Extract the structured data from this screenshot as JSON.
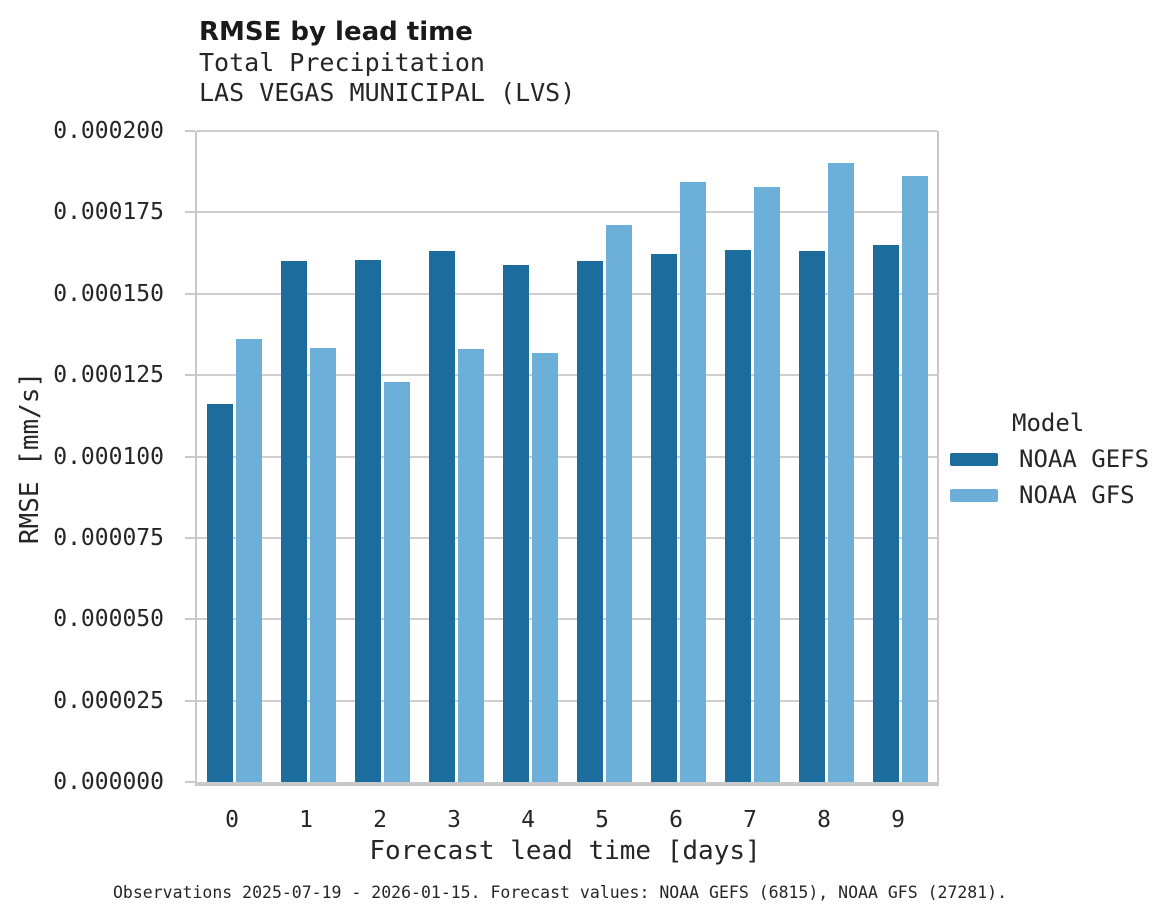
{
  "chart_data": {
    "type": "bar",
    "title": "RMSE by lead time",
    "subtitle_variable": "Total Precipitation",
    "subtitle_station": "LAS VEGAS MUNICIPAL (LVS)",
    "xlabel": "Forecast lead time [days]",
    "ylabel": "RMSE [mm/s]",
    "categories": [
      "0",
      "1",
      "2",
      "3",
      "4",
      "5",
      "6",
      "7",
      "8",
      "9"
    ],
    "series": [
      {
        "name": "NOAA GEFS",
        "color": "#1c6d9e",
        "values": [
          0.0001162,
          0.0001601,
          0.0001605,
          0.0001633,
          0.0001588,
          0.0001601,
          0.0001623,
          0.0001636,
          0.0001633,
          0.000165
        ]
      },
      {
        "name": "NOAA GFS",
        "color": "#6cb0d9",
        "values": [
          0.0001362,
          0.0001334,
          0.0001228,
          0.0001329,
          0.0001318,
          0.0001712,
          0.0001845,
          0.0001827,
          0.0001903,
          0.0001863
        ]
      }
    ],
    "ylim": [
      0,
      0.0002
    ],
    "ytick_labels": [
      "0.000000",
      "0.000025",
      "0.000050",
      "0.000075",
      "0.000100",
      "0.000125",
      "0.000150",
      "0.000175",
      "0.000200"
    ],
    "grid": "horizontal",
    "legend_title": "Model",
    "legend_position": "right"
  },
  "caption": "Observations 2025-07-19 - 2026-01-15. Forecast values: NOAA GEFS (6815), NOAA GFS (27281)."
}
